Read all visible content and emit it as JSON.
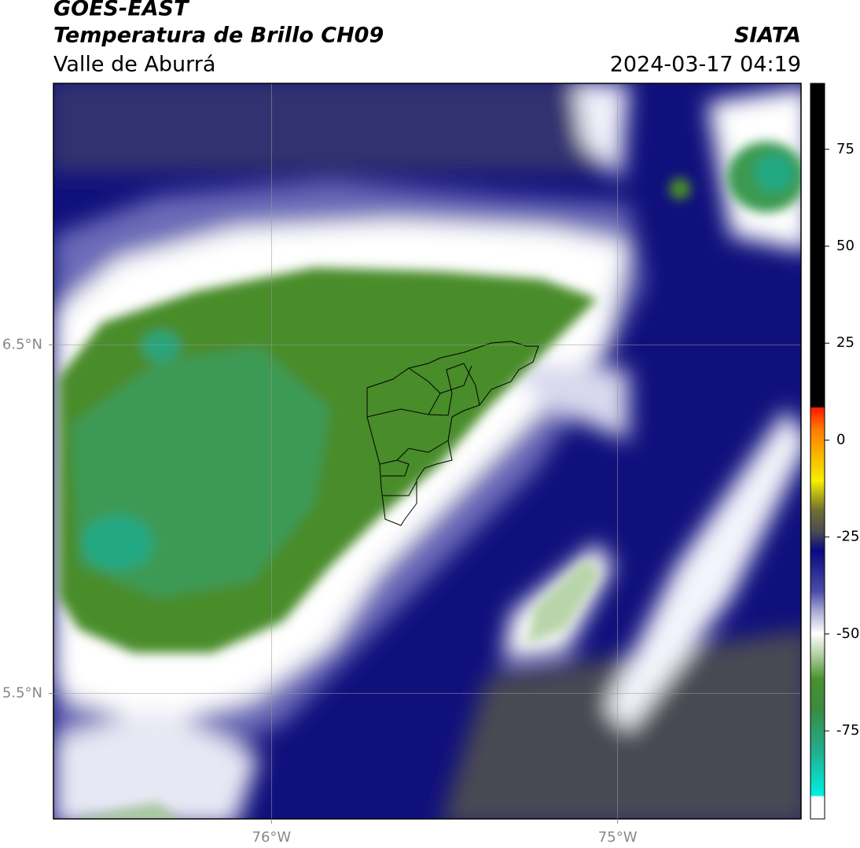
{
  "header": {
    "title": "GOES-EAST",
    "subtitle": "Temperatura de Brillo CH09",
    "region": "Valle de Aburrá",
    "agency": "SIATA",
    "timestamp": "2024-03-17 04:19"
  },
  "map": {
    "xlim": [
      -76.63,
      -74.47
    ],
    "ylim": [
      5.14,
      7.25
    ],
    "xticks": [
      {
        "value": -76,
        "label": "76°W"
      },
      {
        "value": -75,
        "label": "75°W"
      }
    ],
    "yticks": [
      {
        "value": 6.5,
        "label": "6.5°N"
      },
      {
        "value": 5.5,
        "label": "5.5°N"
      }
    ],
    "grid": true
  },
  "colorbar": {
    "lim": [
      -97.7,
      92
    ],
    "ticks": [
      75,
      50,
      25,
      0,
      -25,
      -50,
      -75
    ]
  }
}
